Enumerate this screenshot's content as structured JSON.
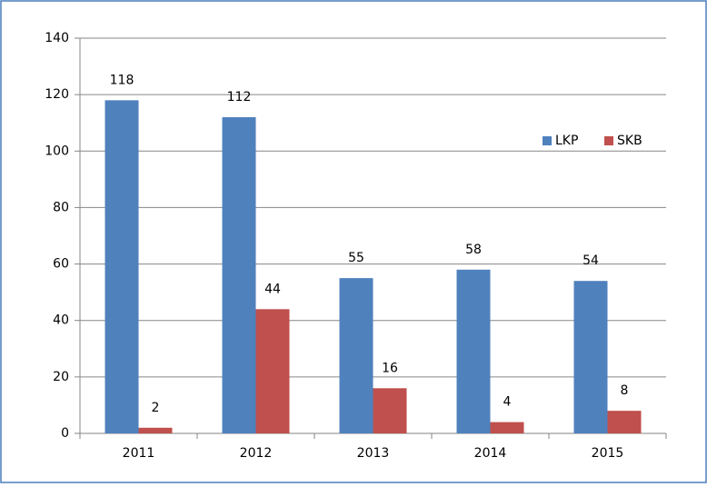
{
  "chart_data": {
    "type": "bar",
    "categories": [
      "2011",
      "2012",
      "2013",
      "2014",
      "2015"
    ],
    "series": [
      {
        "name": "LKP",
        "color": "#4f81bd",
        "values": [
          118,
          112,
          55,
          58,
          54
        ]
      },
      {
        "name": "SKB",
        "color": "#c0504d",
        "values": [
          2,
          44,
          16,
          4,
          8
        ]
      }
    ],
    "ylim": [
      0,
      140
    ],
    "yticks": [
      0,
      20,
      40,
      60,
      80,
      100,
      120,
      140
    ],
    "grid": true,
    "legend": "top-right",
    "data_labels": true
  }
}
